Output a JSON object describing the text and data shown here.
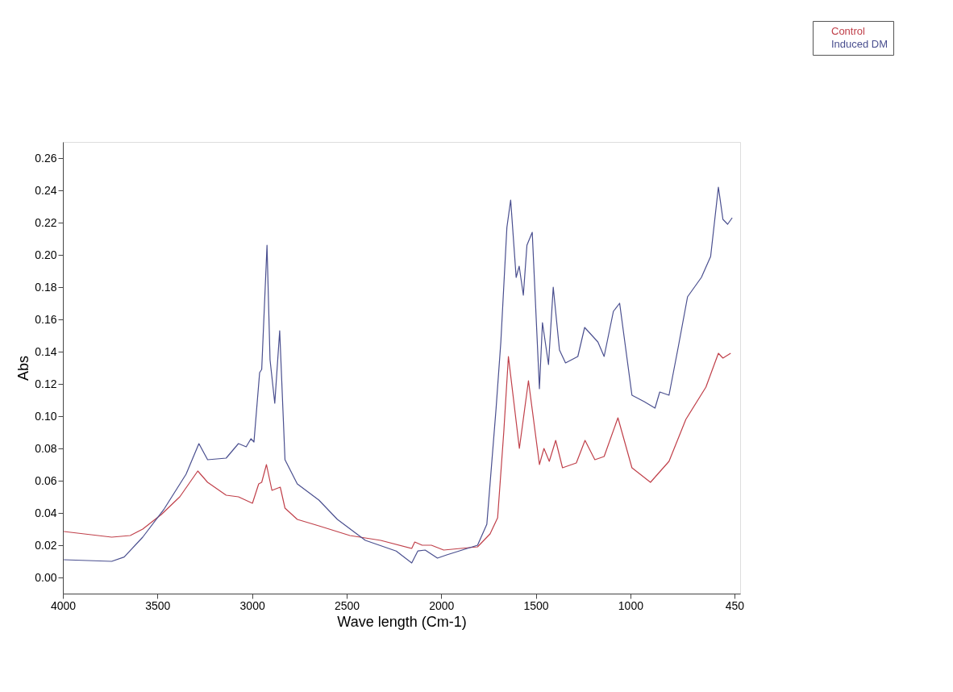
{
  "chart_data": {
    "type": "line",
    "xlabel": "Wave length (Cm-1)",
    "ylabel": "Abs",
    "xlim": [
      4000,
      420
    ],
    "ylim": [
      -0.01,
      0.27
    ],
    "xticks": [
      4000,
      3500,
      3000,
      2500,
      2000,
      1500,
      1000,
      450
    ],
    "yticks": [
      {
        "value": 0,
        "label": "0.00"
      },
      0.02,
      0.04,
      0.06,
      0.08,
      {
        "value": 0.1,
        "label": "0.10"
      },
      0.12,
      0.14,
      0.16,
      0.18,
      {
        "value": 0.2,
        "label": "0.20"
      },
      0.22,
      0.24,
      0.26
    ],
    "grid": false,
    "legend": "top right",
    "marker": "none",
    "line_style": "solid",
    "series": [
      {
        "name": "Control",
        "color": "#c0404a",
        "x": [
          3995,
          3742,
          3644,
          3578,
          3480,
          3382,
          3287,
          3235,
          3137,
          3072,
          2998,
          2965,
          2949,
          2924,
          2895,
          2851,
          2826,
          2761,
          2647,
          2483,
          2320,
          2156,
          2140,
          2101,
          2052,
          1987,
          1808,
          1742,
          1702,
          1669,
          1645,
          1587,
          1539,
          1481,
          1457,
          1429,
          1395,
          1359,
          1286,
          1240,
          1188,
          1139,
          1066,
          992,
          894,
          796,
          707,
          601,
          535,
          511,
          470
        ],
        "values": [
          0.0285,
          0.025,
          0.026,
          0.03,
          0.039,
          0.05,
          0.066,
          0.059,
          0.051,
          0.05,
          0.046,
          0.058,
          0.059,
          0.07,
          0.054,
          0.056,
          0.043,
          0.036,
          0.032,
          0.026,
          0.023,
          0.018,
          0.022,
          0.02,
          0.02,
          0.017,
          0.019,
          0.027,
          0.037,
          0.091,
          0.137,
          0.08,
          0.122,
          0.07,
          0.08,
          0.072,
          0.085,
          0.068,
          0.071,
          0.085,
          0.073,
          0.075,
          0.099,
          0.068,
          0.059,
          0.072,
          0.098,
          0.118,
          0.139,
          0.136,
          0.139
        ]
      },
      {
        "name": "Induced DM",
        "color": "#4a4f8f",
        "x": [
          3995,
          3742,
          3676,
          3578,
          3464,
          3349,
          3281,
          3235,
          3137,
          3072,
          3031,
          3006,
          2990,
          2960,
          2949,
          2921,
          2905,
          2880,
          2854,
          2826,
          2761,
          2647,
          2549,
          2401,
          2238,
          2156,
          2124,
          2085,
          2020,
          1971,
          1808,
          1759,
          1710,
          1685,
          1653,
          1633,
          1604,
          1588,
          1566,
          1547,
          1519,
          1481,
          1465,
          1433,
          1408,
          1375,
          1343,
          1278,
          1242,
          1172,
          1139,
          1090,
          1057,
          992,
          927,
          870,
          845,
          796,
          747,
          698,
          625,
          576,
          535,
          511,
          486,
          462
        ],
        "values": [
          0.011,
          0.01,
          0.0127,
          0.025,
          0.0426,
          0.064,
          0.083,
          0.073,
          0.074,
          0.083,
          0.081,
          0.086,
          0.084,
          0.127,
          0.129,
          0.206,
          0.135,
          0.108,
          0.153,
          0.073,
          0.058,
          0.048,
          0.036,
          0.023,
          0.0164,
          0.009,
          0.0164,
          0.017,
          0.012,
          0.014,
          0.02,
          0.033,
          0.105,
          0.146,
          0.217,
          0.234,
          0.186,
          0.193,
          0.175,
          0.206,
          0.214,
          0.117,
          0.158,
          0.132,
          0.18,
          0.141,
          0.133,
          0.137,
          0.155,
          0.146,
          0.137,
          0.165,
          0.17,
          0.113,
          0.109,
          0.105,
          0.115,
          0.113,
          0.143,
          0.174,
          0.186,
          0.199,
          0.242,
          0.222,
          0.219,
          0.223
        ]
      }
    ]
  }
}
